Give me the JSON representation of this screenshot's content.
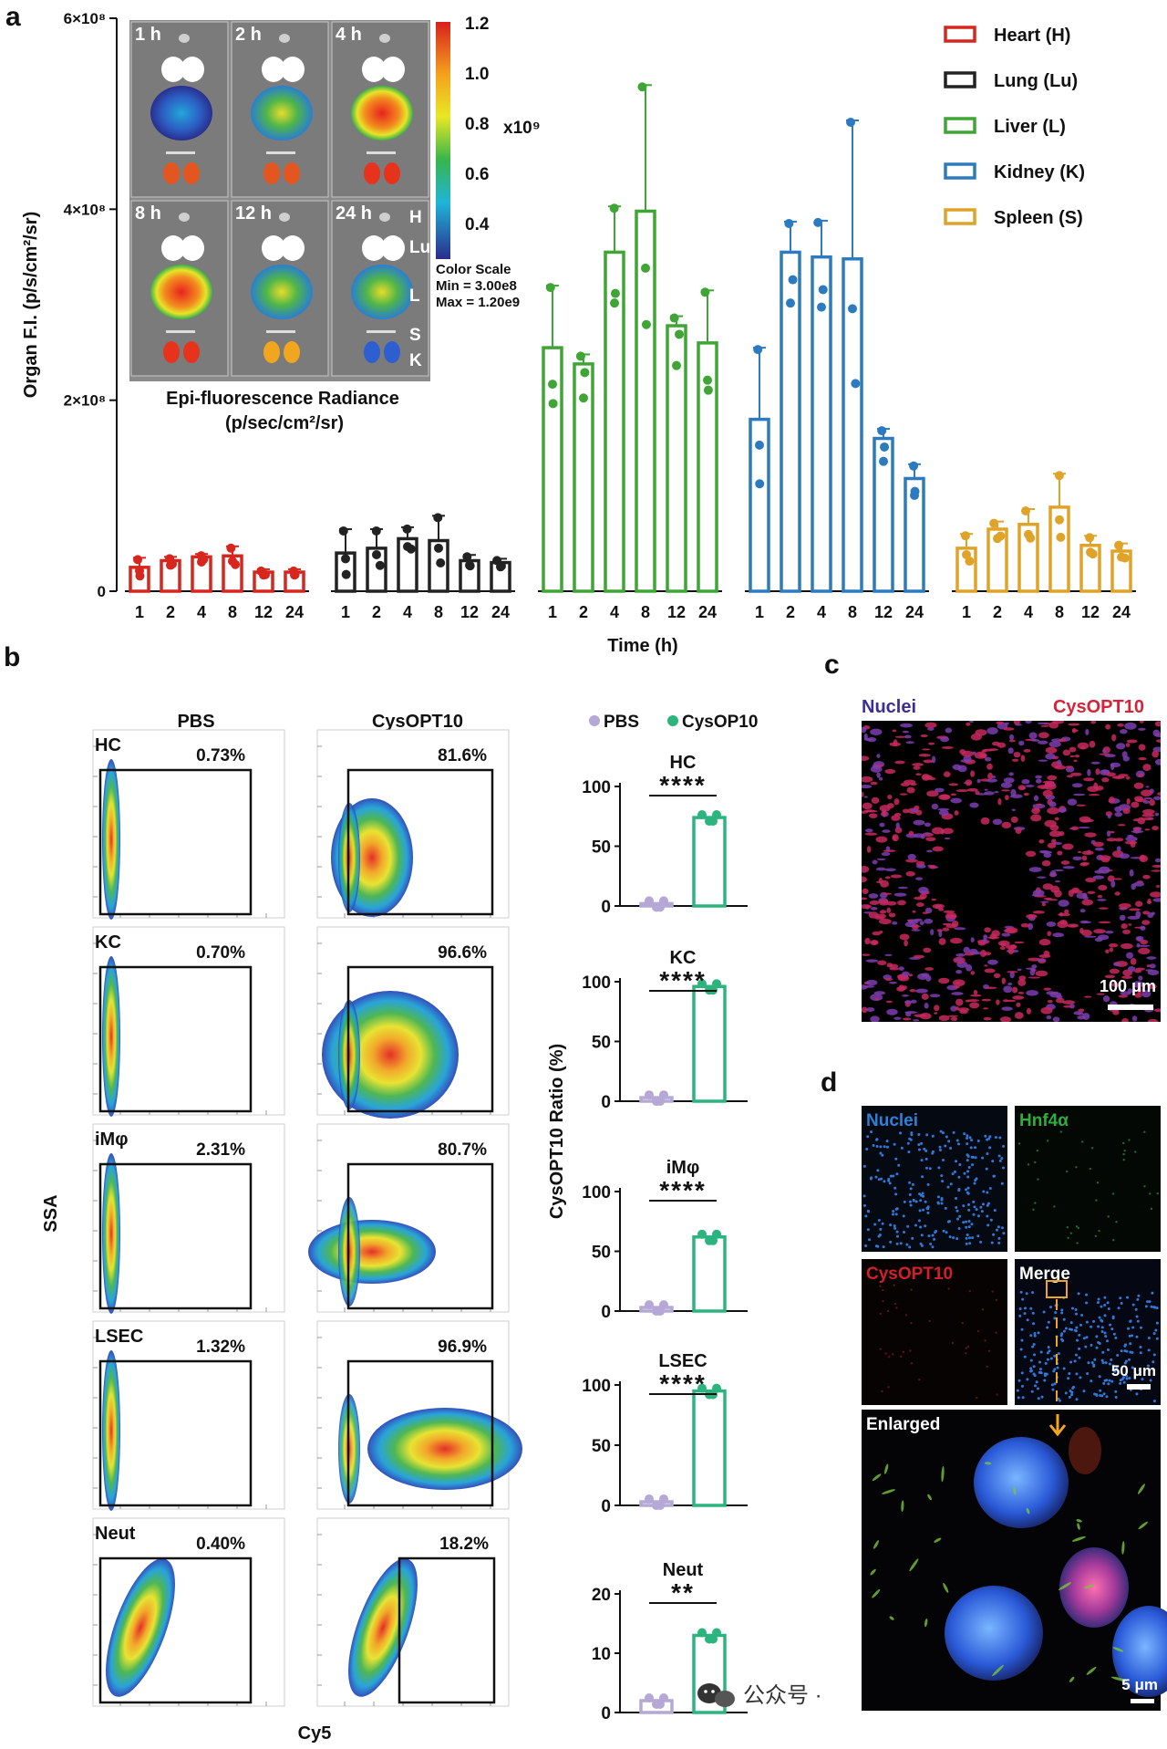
{
  "panels": {
    "a": "a",
    "b": "b",
    "c": "c",
    "d": "d"
  },
  "chart_data": [
    {
      "type": "bar",
      "panel": "a",
      "xlabel": "Time (h)",
      "ylabel": "Organ F.I. (p/s/cm²/sr)",
      "ylim": [
        0,
        600000000
      ],
      "yticks": [
        "0",
        "2×10⁸",
        "4×10⁸",
        "6×10⁸"
      ],
      "ytick_values": [
        0,
        200000000,
        400000000,
        600000000
      ],
      "categories": [
        "1",
        "2",
        "4",
        "8",
        "12",
        "24"
      ],
      "legend_position": "top-right",
      "series": [
        {
          "name": "Heart (H)",
          "color": "#d7261e",
          "values": [
            25000000,
            32000000,
            36000000,
            37000000,
            20000000,
            20000000
          ],
          "errors": [
            10000000,
            4000000,
            3000000,
            10000000,
            3000000,
            3000000
          ]
        },
        {
          "name": "Lung (Lu)",
          "color": "#222222",
          "values": [
            40000000,
            45000000,
            55000000,
            53000000,
            32000000,
            30000000
          ],
          "errors": [
            25000000,
            20000000,
            12000000,
            26000000,
            6000000,
            4000000
          ]
        },
        {
          "name": "Liver (L)",
          "color": "#3fa535",
          "values": [
            255000000,
            238000000,
            355000000,
            398000000,
            278000000,
            260000000
          ],
          "errors": [
            65000000,
            10000000,
            48000000,
            132000000,
            10000000,
            55000000
          ]
        },
        {
          "name": "Kidney (K)",
          "color": "#2c7bc0",
          "values": [
            180000000,
            355000000,
            350000000,
            348000000,
            160000000,
            118000000
          ],
          "errors": [
            75000000,
            32000000,
            38000000,
            145000000,
            10000000,
            15000000
          ]
        },
        {
          "name": "Spleen (S)",
          "color": "#e0a32a",
          "values": [
            45000000,
            65000000,
            70000000,
            88000000,
            48000000,
            42000000
          ],
          "errors": [
            15000000,
            8000000,
            16000000,
            35000000,
            10000000,
            8000000
          ]
        }
      ]
    },
    {
      "type": "bar",
      "panel": "b",
      "ylabel": "CysOPT10 Ratio (%)",
      "legend": [
        "PBS",
        "CysOP10"
      ],
      "series_colors": [
        "#b5a8d6",
        "#2bb47d"
      ],
      "groups": [
        {
          "name": "HC",
          "values": [
            2,
            74
          ],
          "ylim": [
            0,
            100
          ],
          "yticks": [
            0,
            50,
            100
          ],
          "sig": "****"
        },
        {
          "name": "KC",
          "values": [
            3,
            96
          ],
          "ylim": [
            0,
            100
          ],
          "yticks": [
            0,
            50,
            100
          ],
          "sig": "****"
        },
        {
          "name": "iMφ",
          "values": [
            3,
            62
          ],
          "ylim": [
            0,
            100
          ],
          "yticks": [
            0,
            50,
            100
          ],
          "sig": "****"
        },
        {
          "name": "LSEC",
          "values": [
            3,
            95
          ],
          "ylim": [
            0,
            100
          ],
          "yticks": [
            0,
            50,
            100
          ],
          "sig": "****"
        },
        {
          "name": "Neut",
          "values": [
            2,
            13
          ],
          "ylim": [
            0,
            20
          ],
          "yticks": [
            0,
            10,
            20
          ],
          "sig": "**"
        }
      ]
    }
  ],
  "imaging": {
    "times": [
      "1 h",
      "2 h",
      "4 h",
      "8 h",
      "12 h",
      "24 h"
    ],
    "organs": [
      "H",
      "Lu",
      "L",
      "S",
      "K"
    ],
    "color_scale": {
      "ticks": [
        "1.2",
        "1.0",
        "0.8",
        "0.6",
        "0.4"
      ],
      "unit": "x10⁹",
      "title": "Color Scale",
      "min": "Min = 3.00e8",
      "max": "Max = 1.20e9"
    },
    "caption_line1": "Epi-fluorescence Radiance",
    "caption_line2": "(p/sec/cm²/sr)"
  },
  "flow": {
    "col_pbs": "PBS",
    "col_opt": "CysOPT10",
    "yaxis": "SSA",
    "xaxis": "Cy5",
    "rows": [
      {
        "name": "HC",
        "pbs": "0.73%",
        "opt": "81.6%"
      },
      {
        "name": "KC",
        "pbs": "0.70%",
        "opt": "96.6%"
      },
      {
        "name": "iMφ",
        "pbs": "2.31%",
        "opt": "80.7%"
      },
      {
        "name": "LSEC",
        "pbs": "1.32%",
        "opt": "96.9%"
      },
      {
        "name": "Neut",
        "pbs": "0.40%",
        "opt": "18.2%"
      }
    ]
  },
  "panel_c": {
    "nuclei": "Nuclei",
    "opt": "CysOPT10",
    "scale": "100 μm"
  },
  "panel_d": {
    "nuclei": "Nuclei",
    "hnf": "Hnf4α",
    "opt": "CysOPT10",
    "merge": "Merge",
    "scale_merge": "50 μm",
    "enlarged": "Enlarged",
    "scale_enlarged": "5 μm"
  },
  "watermark": "公众号 ·"
}
